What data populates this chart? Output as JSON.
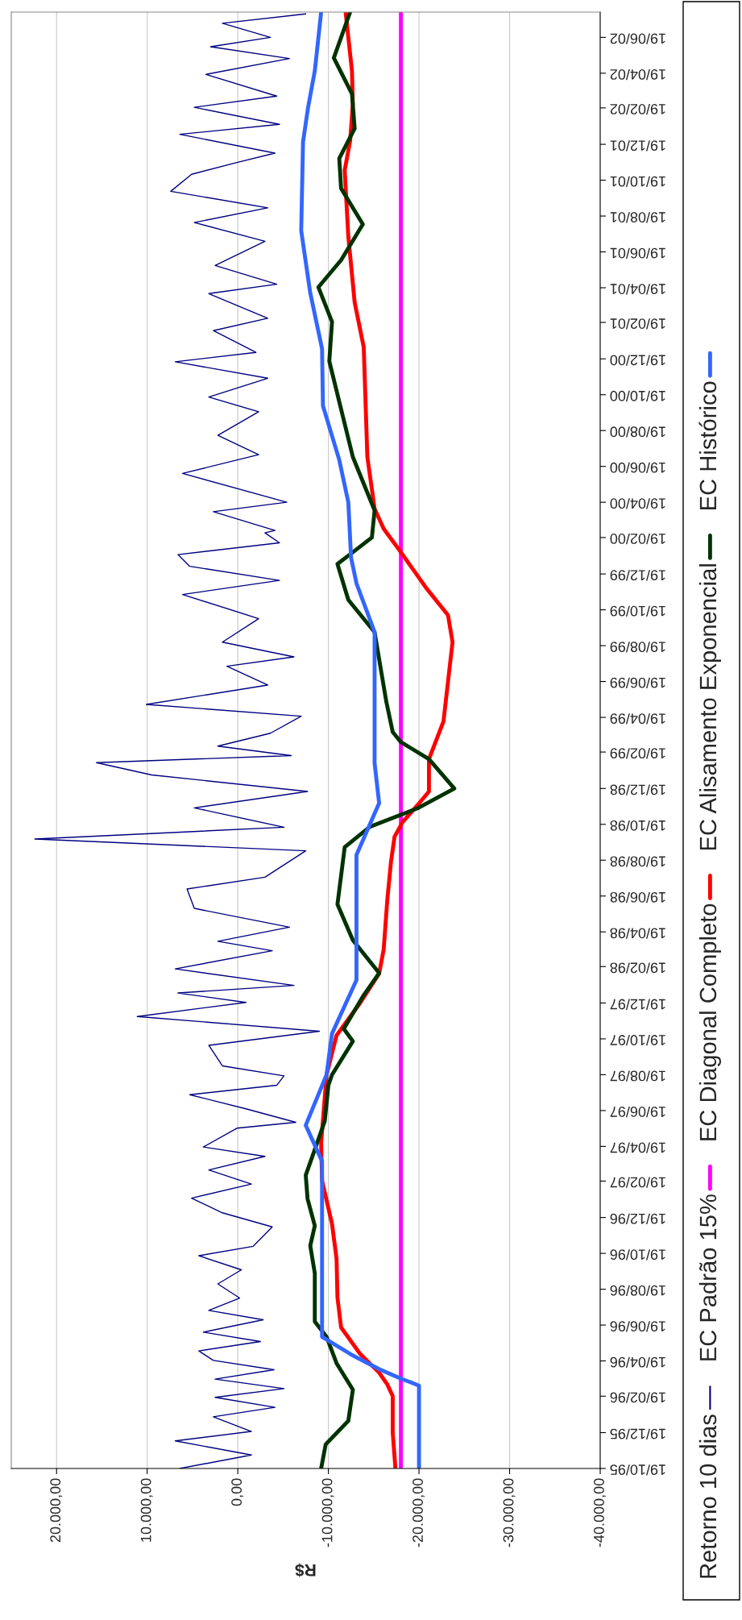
{
  "chart_data": {
    "type": "line",
    "orientation": "horizontal",
    "xlabel": "R$",
    "legend": "right",
    "grid": "x",
    "ylim": [
      "1995-10-19",
      "2002-08-01"
    ],
    "yticks": [
      {
        "value": "1995-10-19",
        "label": "19/10/95"
      },
      {
        "value": "1995-12-19",
        "label": "19/12/95"
      },
      {
        "value": "1996-02-19",
        "label": "19/02/96"
      },
      {
        "value": "1996-04-19",
        "label": "19/04/96"
      },
      {
        "value": "1996-06-19",
        "label": "19/06/96"
      },
      {
        "value": "1996-08-19",
        "label": "19/08/96"
      },
      {
        "value": "1996-10-19",
        "label": "19/10/96"
      },
      {
        "value": "1996-12-19",
        "label": "19/12/96"
      },
      {
        "value": "1997-02-19",
        "label": "19/02/97"
      },
      {
        "value": "1997-04-19",
        "label": "19/04/97"
      },
      {
        "value": "1997-06-19",
        "label": "19/06/97"
      },
      {
        "value": "1997-08-19",
        "label": "19/08/97"
      },
      {
        "value": "1997-10-19",
        "label": "19/10/97"
      },
      {
        "value": "1997-12-19",
        "label": "19/12/97"
      },
      {
        "value": "1998-02-19",
        "label": "19/02/98"
      },
      {
        "value": "1998-04-19",
        "label": "19/04/98"
      },
      {
        "value": "1998-06-19",
        "label": "19/06/98"
      },
      {
        "value": "1998-08-19",
        "label": "19/08/98"
      },
      {
        "value": "1998-10-19",
        "label": "19/10/98"
      },
      {
        "value": "1998-12-19",
        "label": "19/12/98"
      },
      {
        "value": "1999-02-19",
        "label": "19/02/99"
      },
      {
        "value": "1999-04-19",
        "label": "19/04/99"
      },
      {
        "value": "1999-06-19",
        "label": "19/06/99"
      },
      {
        "value": "1999-08-19",
        "label": "19/08/99"
      },
      {
        "value": "1999-10-19",
        "label": "19/10/99"
      },
      {
        "value": "1999-12-19",
        "label": "19/12/99"
      },
      {
        "value": "2000-02-19",
        "label": "19/02/00"
      },
      {
        "value": "2000-04-19",
        "label": "19/04/00"
      },
      {
        "value": "2000-06-19",
        "label": "19/06/00"
      },
      {
        "value": "2000-08-19",
        "label": "19/08/00"
      },
      {
        "value": "2000-10-19",
        "label": "19/10/00"
      },
      {
        "value": "2000-12-19",
        "label": "19/12/00"
      },
      {
        "value": "2001-02-19",
        "label": "19/02/01"
      },
      {
        "value": "2001-04-19",
        "label": "19/04/01"
      },
      {
        "value": "2001-06-19",
        "label": "19/06/01"
      },
      {
        "value": "2001-08-19",
        "label": "19/08/01"
      },
      {
        "value": "2001-10-19",
        "label": "19/10/01"
      },
      {
        "value": "2001-12-19",
        "label": "19/12/01"
      },
      {
        "value": "2002-02-19",
        "label": "19/02/02"
      },
      {
        "value": "2002-04-19",
        "label": "19/04/02"
      },
      {
        "value": "2002-06-19",
        "label": "19/06/02"
      }
    ],
    "xlim": [
      25000,
      -40000
    ],
    "xticks": [
      {
        "value": -40000,
        "label": "-40.000,00"
      },
      {
        "value": -30000,
        "label": "-30.000,00"
      },
      {
        "value": -20000,
        "label": "-20.000,00"
      },
      {
        "value": -10000,
        "label": "-10.000,00"
      },
      {
        "value": 0,
        "label": "0,00"
      },
      {
        "value": 10000,
        "label": "10.000,00"
      },
      {
        "value": 20000,
        "label": "20.000,00"
      }
    ],
    "series": [
      {
        "name": "Retorno 10 dias",
        "color": "#000080",
        "x": [
          "1995-10-19",
          "1995-11-11",
          "1995-12-05",
          "1995-12-21",
          "1996-01-15",
          "1996-01-31",
          "1996-02-17",
          "1996-03-03",
          "1996-03-19",
          "1996-04-04",
          "1996-04-20",
          "1996-05-06",
          "1996-05-22",
          "1996-06-07",
          "1996-06-28",
          "1996-07-14",
          "1996-08-04",
          "1996-08-28",
          "1996-09-21",
          "1996-10-15",
          "1996-10-31",
          "1996-12-03",
          "1996-12-27",
          "1997-01-21",
          "1997-02-14",
          "1997-03-10",
          "1997-04-02",
          "1997-04-18",
          "1997-05-20",
          "1997-05-30",
          "1997-06-22",
          "1997-07-16",
          "1997-08-01",
          "1997-08-17",
          "1997-09-03",
          "1997-10-08",
          "1997-11-01",
          "1997-11-26",
          "1997-12-20",
          "1998-01-05",
          "1998-01-18",
          "1998-02-15",
          "1998-03-18",
          "1998-04-03",
          "1998-04-27",
          "1998-05-29",
          "1998-07-01",
          "1998-07-21",
          "1998-09-04",
          "1998-09-24",
          "1998-10-14",
          "1998-11-16",
          "1998-12-14",
          "1999-01-11",
          "1999-02-01",
          "1999-02-13",
          "1999-03-01",
          "1999-03-23",
          "1999-04-21",
          "1999-05-11",
          "1999-06-13",
          "1999-07-15",
          "1999-07-31",
          "1999-08-25",
          "1999-10-04",
          "1999-11-14",
          "1999-12-08",
          "2000-01-01",
          "2000-01-21",
          "2000-02-10",
          "2000-02-27",
          "2000-03-02",
          "2000-04-03",
          "2000-04-19",
          "2000-06-07",
          "2000-07-09",
          "2000-08-11",
          "2000-09-20",
          "2000-10-15",
          "2000-11-16",
          "2000-12-14",
          "2000-12-30",
          "2001-02-05",
          "2001-02-26",
          "2001-04-09",
          "2001-04-25",
          "2001-05-27",
          "2001-07-07",
          "2001-08-08",
          "2001-09-02",
          "2001-09-30",
          "2001-10-29",
          "2001-11-18",
          "2001-12-04",
          "2002-01-05",
          "2002-01-22",
          "2002-02-20",
          "2002-03-11",
          "2002-04-17",
          "2002-05-14",
          "2002-06-03",
          "2002-06-19",
          "2002-07-13",
          "2002-07-29"
        ],
        "values": [
          6400,
          -1500,
          6900,
          -1500,
          2700,
          -4100,
          2500,
          -5100,
          2500,
          -4000,
          2700,
          4300,
          -2500,
          3800,
          -2800,
          3200,
          -200,
          2200,
          -400,
          4300,
          -1700,
          -3800,
          1700,
          5100,
          -1500,
          3200,
          -3000,
          3800,
          100,
          -6400,
          -900,
          5300,
          -4300,
          -5100,
          1700,
          3200,
          -9000,
          11100,
          -900,
          6600,
          -6200,
          6900,
          -3800,
          2200,
          -5700,
          4800,
          5600,
          -3000,
          -7500,
          22400,
          -5100,
          4800,
          -7700,
          9500,
          15600,
          -5900,
          2200,
          -3600,
          -7000,
          10100,
          -3300,
          1200,
          -6200,
          1700,
          -2300,
          6100,
          -4600,
          5300,
          6600,
          -4600,
          -3000,
          -4100,
          2700,
          -5400,
          6100,
          -2300,
          2200,
          -2300,
          3200,
          -3300,
          6900,
          -2000,
          2700,
          -3300,
          3200,
          -4300,
          2500,
          -3000,
          4800,
          -3300,
          7400,
          5100,
          100,
          -4100,
          6400,
          -4600,
          4800,
          -4300,
          3500,
          -5700,
          3000,
          -3600,
          1700,
          -7500
        ]
      },
      {
        "name": "EC Padrão 15%",
        "color": "#ff00ff",
        "x": [
          "1995-10-19",
          "2002-08-01"
        ],
        "values": [
          -18000,
          -18000
        ]
      },
      {
        "name": "EC Diagonal Completo",
        "color": "#ff0000",
        "x": [
          "1995-10-19",
          "1995-12-19",
          "1996-02-19",
          "1996-03-10",
          "1996-03-30",
          "1996-05-01",
          "1996-06-15",
          "1996-08-05",
          "1996-10-10",
          "1996-12-08",
          "1997-02-20",
          "1997-04-25",
          "1997-08-19",
          "1997-10-25",
          "1997-12-19",
          "1998-02-07",
          "1998-03-20",
          "1998-06-12",
          "1998-08-15",
          "1998-09-28",
          "1998-10-23",
          "1998-11-20",
          "1998-12-14",
          "1999-02-07",
          "1999-04-12",
          "1999-08-25",
          "1999-10-10",
          "1999-11-25",
          "2000-01-25",
          "2000-03-05",
          "2000-04-08",
          "2000-07-05",
          "2001-01-08",
          "2001-03-25",
          "2001-07-15",
          "2001-11-05",
          "2001-12-25",
          "2002-02-26",
          "2002-04-23",
          "2002-08-01"
        ],
        "values": [
          -17400,
          -17100,
          -17100,
          -16500,
          -15600,
          -13500,
          -11400,
          -11000,
          -10900,
          -10400,
          -9300,
          -9200,
          -9800,
          -10900,
          -13500,
          -15600,
          -16100,
          -16500,
          -16900,
          -17300,
          -18200,
          -19800,
          -21100,
          -21100,
          -22700,
          -23700,
          -23200,
          -20800,
          -18000,
          -16100,
          -15100,
          -14300,
          -13900,
          -12900,
          -12200,
          -11800,
          -12400,
          -12700,
          -12600,
          -11900
        ]
      },
      {
        "name": "EC Alisamento Exponencial",
        "color": "#003300",
        "x": [
          "1995-10-19",
          "1995-11-29",
          "1996-01-08",
          "1996-03-01",
          "1996-04-15",
          "1996-05-30",
          "1996-06-25",
          "1996-09-15",
          "1996-11-01",
          "1996-12-05",
          "1997-01-20",
          "1997-03-01",
          "1997-04-05",
          "1997-06-01",
          "1997-08-01",
          "1997-08-19",
          "1997-10-15",
          "1997-11-05",
          "1997-12-30",
          "1998-02-08",
          "1998-04-05",
          "1998-06-05",
          "1998-09-10",
          "1998-10-15",
          "1998-11-15",
          "1998-12-19",
          "1999-02-07",
          "1999-03-08",
          "1999-03-25",
          "1999-05-15",
          "1999-09-11",
          "1999-11-05",
          "2000-01-05",
          "2000-01-25",
          "2000-02-19",
          "2000-04-05",
          "2000-07-05",
          "2000-12-15",
          "2001-02-20",
          "2001-04-20",
          "2001-06-05",
          "2001-08-05",
          "2001-10-05",
          "2001-11-25",
          "2002-01-15",
          "2002-03-15",
          "2002-05-15",
          "2002-08-01"
        ],
        "values": [
          -9200,
          -9700,
          -12200,
          -12700,
          -10900,
          -9800,
          -8500,
          -8500,
          -8000,
          -8500,
          -7700,
          -7500,
          -8300,
          -9600,
          -10000,
          -10400,
          -12700,
          -11700,
          -13800,
          -15600,
          -12700,
          -11000,
          -11800,
          -14600,
          -19800,
          -23900,
          -21100,
          -18000,
          -17100,
          -16400,
          -15100,
          -12200,
          -11000,
          -12700,
          -14800,
          -15100,
          -12700,
          -10100,
          -10400,
          -8900,
          -11400,
          -13800,
          -11400,
          -11200,
          -12900,
          -12600,
          -10600,
          -12400
        ]
      },
      {
        "name": "EC Histórico",
        "color": "#3366ff",
        "x": [
          "1995-10-19",
          "1996-03-08",
          "1996-03-20",
          "1996-04-05",
          "1996-04-30",
          "1996-05-30",
          "1997-03-25",
          "1997-05-25",
          "1997-08-19",
          "1997-10-28",
          "1998-01-27",
          "1998-08-28",
          "1998-11-24",
          "1999-01-31",
          "1999-09-11",
          "1999-12-03",
          "2000-01-16",
          "2000-04-19",
          "2000-06-30",
          "2000-09-30",
          "2001-01-05",
          "2001-04-10",
          "2001-07-25",
          "2001-12-23",
          "2002-02-19",
          "2002-04-23",
          "2002-08-01"
        ],
        "values": [
          -20000,
          -20000,
          -18000,
          -15600,
          -12500,
          -9300,
          -9300,
          -7500,
          -9800,
          -10400,
          -13100,
          -13100,
          -15600,
          -15100,
          -15100,
          -13100,
          -12500,
          -12200,
          -11200,
          -9400,
          -9300,
          -8000,
          -7000,
          -7200,
          -7750,
          -8500,
          -9200
        ]
      }
    ]
  }
}
